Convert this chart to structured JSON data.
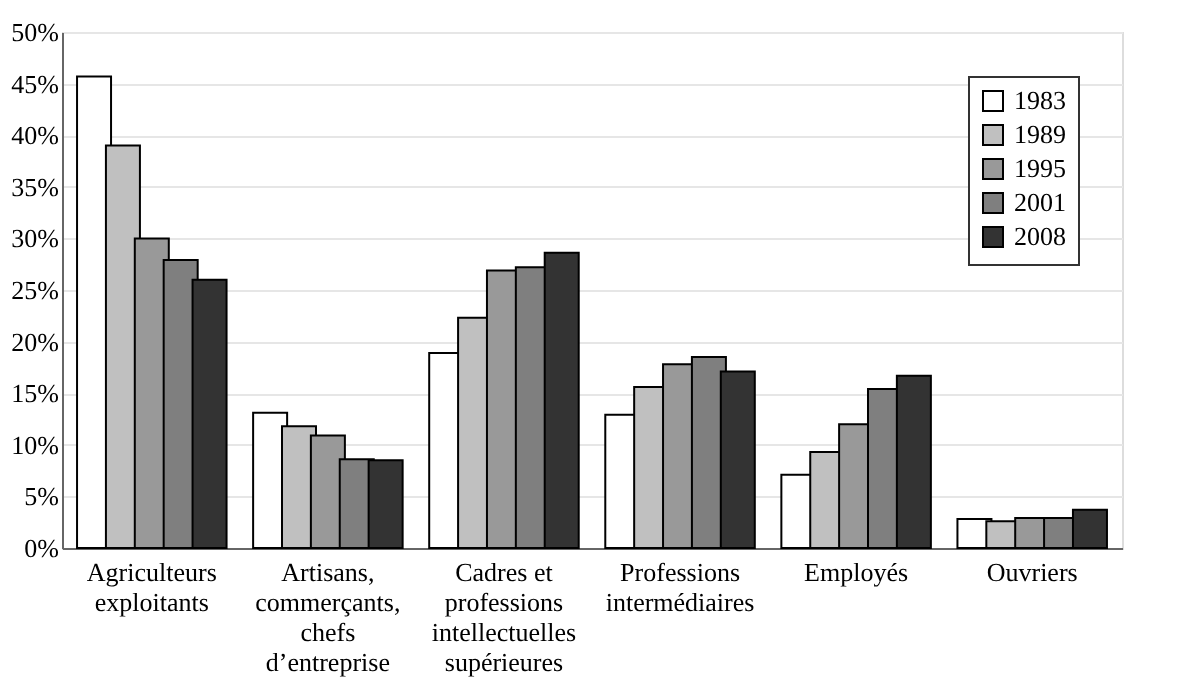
{
  "chart_data": {
    "type": "bar",
    "categories": [
      "Agriculteurs exploitants",
      "Artisans, commerçants, chefs d’entreprise",
      "Cadres et professions intellectuelles supérieures",
      "Professions intermédiaires",
      "Employés",
      "Ouvriers"
    ],
    "series": [
      {
        "name": "1983",
        "color": "#ffffff",
        "values": [
          45.7,
          13.1,
          18.9,
          12.9,
          7.1,
          2.8
        ]
      },
      {
        "name": "1989",
        "color": "#c0c0c0",
        "values": [
          39,
          11.8,
          22.3,
          15.6,
          9.3,
          2.6
        ]
      },
      {
        "name": "1995",
        "color": "#999999",
        "values": [
          30,
          10.9,
          26.9,
          17.8,
          12,
          2.9
        ]
      },
      {
        "name": "2001",
        "color": "#7f7f7f",
        "values": [
          27.9,
          8.6,
          27.2,
          18.5,
          15.4,
          2.9
        ]
      },
      {
        "name": "2008",
        "color": "#333333",
        "values": [
          26,
          8.5,
          28.6,
          17.1,
          16.7,
          3.7
        ]
      }
    ],
    "ylim": [
      0,
      50
    ],
    "yticks": [
      {
        "value": 0,
        "label": "0%"
      },
      {
        "value": 5,
        "label": "5%"
      },
      {
        "value": 10,
        "label": "10%"
      },
      {
        "value": 15,
        "label": "15%"
      },
      {
        "value": 20,
        "label": "20%"
      },
      {
        "value": 25,
        "label": "25%"
      },
      {
        "value": 30,
        "label": "30%"
      },
      {
        "value": 35,
        "label": "35%"
      },
      {
        "value": 40,
        "label": "40%"
      },
      {
        "value": 45,
        "label": "45%"
      },
      {
        "value": 50,
        "label": "50%"
      }
    ],
    "grid": "y",
    "legend": "top right"
  }
}
